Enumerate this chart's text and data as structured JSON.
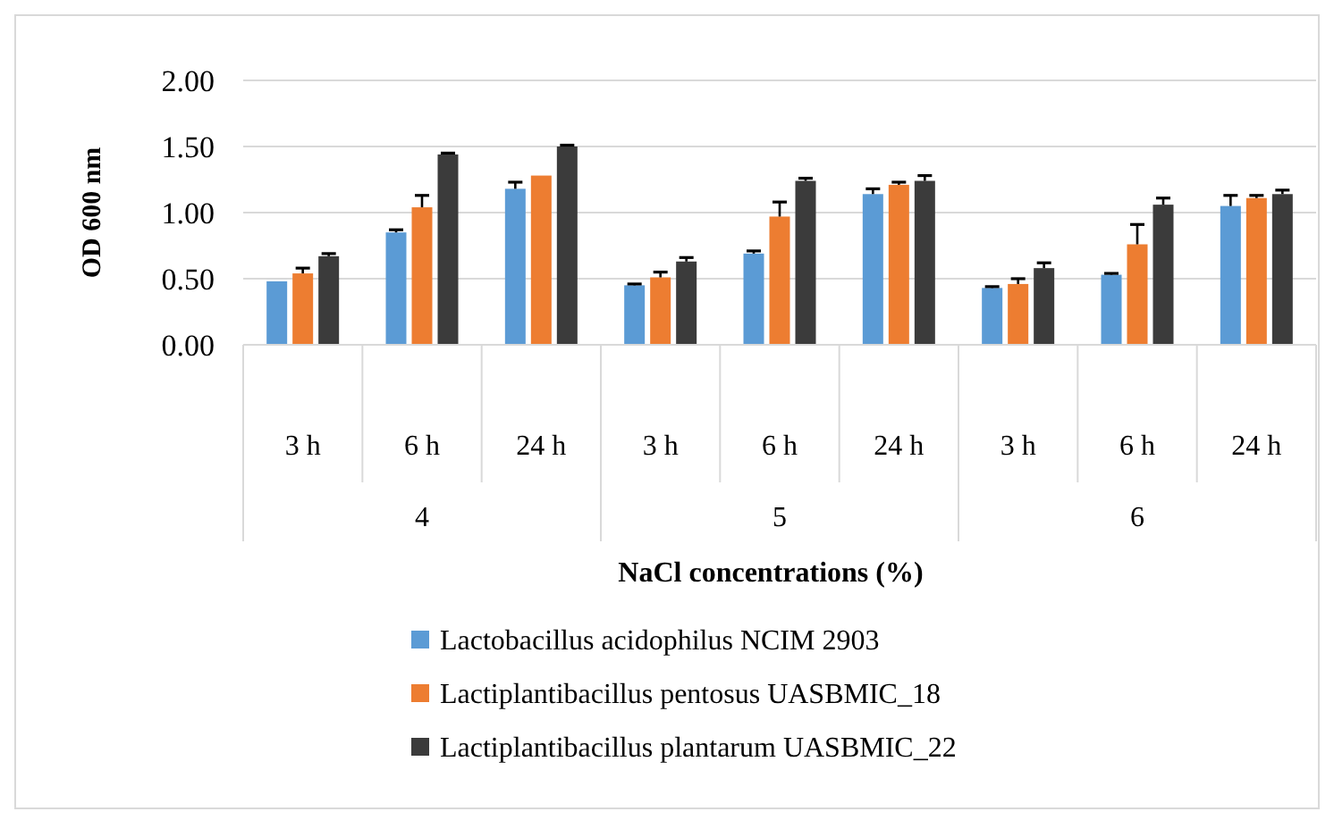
{
  "chart_data": {
    "type": "bar",
    "xlabel": "NaCl concentrations (%)",
    "ylabel": "OD 600 nm",
    "categories": [
      "3 h",
      "6 h",
      "24 h",
      "3 h",
      "6 h",
      "24 h",
      "3 h",
      "6 h",
      "24 h"
    ],
    "annotations": [
      "4",
      "5",
      "6"
    ],
    "series": [
      {
        "name": "Lactobacillus acidophilus NCIM 2903",
        "color": "#5b9bd5",
        "values": [
          0.48,
          0.85,
          1.18,
          0.45,
          0.69,
          1.14,
          0.43,
          0.53,
          1.05
        ],
        "errors": [
          null,
          [
            0.85,
            0.87
          ],
          [
            1.18,
            1.23
          ],
          [
            0.45,
            0.46
          ],
          [
            0.69,
            0.71
          ],
          [
            1.14,
            1.18
          ],
          [
            0.43,
            0.44
          ],
          [
            0.53,
            0.54
          ],
          [
            1.05,
            1.13
          ]
        ]
      },
      {
        "name": "Lactiplantibacillus pentosus UASBMIC_18",
        "color": "#ed7d31",
        "values": [
          0.54,
          1.04,
          1.28,
          0.51,
          0.97,
          1.21,
          0.46,
          0.76,
          1.11
        ],
        "errors": [
          [
            0.54,
            0.58
          ],
          [
            1.04,
            1.13
          ],
          null,
          [
            0.51,
            0.55
          ],
          [
            0.97,
            1.08
          ],
          [
            1.21,
            1.23
          ],
          [
            0.46,
            0.5
          ],
          [
            0.76,
            0.91
          ],
          [
            1.11,
            1.13
          ]
        ]
      },
      {
        "name": "Lactiplantibacillus plantarum UASBMIC_22",
        "color": "#3b3b3b",
        "values": [
          0.67,
          1.44,
          1.5,
          0.63,
          1.24,
          1.24,
          0.58,
          1.06,
          1.14
        ],
        "errors": [
          [
            0.67,
            0.69
          ],
          [
            1.44,
            1.45
          ],
          [
            1.5,
            1.51
          ],
          [
            0.63,
            0.66
          ],
          [
            1.24,
            1.26
          ],
          [
            1.24,
            1.28
          ],
          [
            0.58,
            0.62
          ],
          [
            1.06,
            1.11
          ],
          [
            1.14,
            1.17
          ]
        ]
      }
    ],
    "ylim": [
      0,
      2
    ],
    "yticks": [
      {
        "value": 0,
        "label": "0.00"
      },
      {
        "value": 0.5,
        "label": "0.50"
      },
      {
        "value": 1,
        "label": "1.00"
      },
      {
        "value": 1.5,
        "label": "1.50"
      },
      {
        "value": 2,
        "label": "2.00"
      }
    ],
    "grid": "y",
    "legend": "bottom"
  }
}
